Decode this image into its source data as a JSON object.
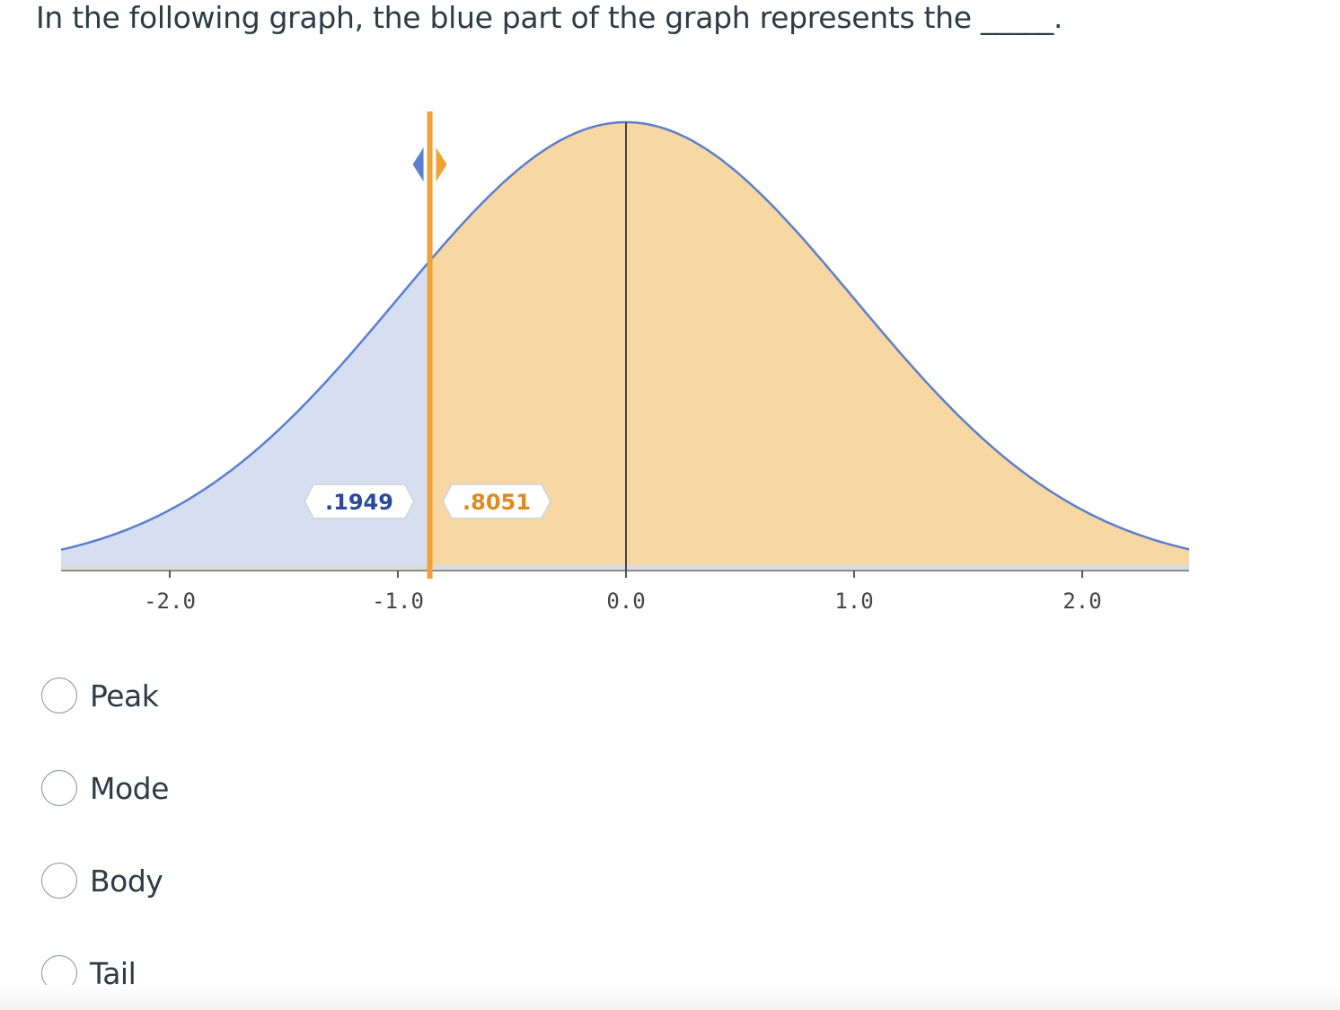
{
  "question": {
    "text": "In the following graph, the blue part of the graph represents the _____."
  },
  "chart_data": {
    "type": "area",
    "distribution": "standard normal",
    "x_ticks": [
      "-2.0",
      "-1.0",
      "0.0",
      "1.0",
      "2.0"
    ],
    "xlim": [
      -2.5,
      2.5
    ],
    "cutoff_z": -0.86,
    "left_area_label": ".1949",
    "right_area_label": ".8051",
    "left_area": 0.1949,
    "right_area": 0.8051,
    "colors": {
      "left_fill": "#d6def2",
      "right_fill": "#f7d7a2",
      "curve": "#5b7fcf",
      "cutoff_line": "#f2a134",
      "left_label_text": "#2c4a9a",
      "right_label_text": "#e08a1e",
      "axis": "#555555"
    }
  },
  "options": [
    {
      "label": "Peak"
    },
    {
      "label": "Mode"
    },
    {
      "label": "Body"
    },
    {
      "label": "Tail"
    }
  ]
}
